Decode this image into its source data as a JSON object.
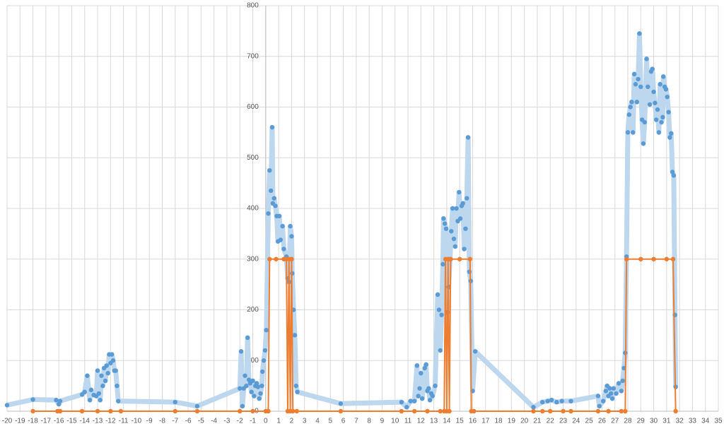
{
  "chart_data": {
    "type": "scatter",
    "xlim": [
      -20,
      35
    ],
    "ylim": [
      0,
      800
    ],
    "xticks": [
      -20,
      -19,
      -18,
      -17,
      -16,
      -15,
      -14,
      -13,
      -12,
      -11,
      -10,
      -9,
      -8,
      -7,
      -6,
      -5,
      -4,
      -3,
      -2,
      -1,
      0,
      1,
      2,
      3,
      4,
      5,
      6,
      7,
      8,
      9,
      10,
      11,
      12,
      13,
      14,
      15,
      16,
      17,
      18,
      19,
      20,
      21,
      22,
      23,
      24,
      25,
      26,
      27,
      28,
      29,
      30,
      31,
      32,
      33,
      34,
      35
    ],
    "yticks": [
      0,
      100,
      200,
      300,
      400,
      500,
      600,
      700,
      800
    ],
    "grid": true,
    "series": [
      {
        "color": "#5b9bd5",
        "line_color": "#bdd7ee",
        "x": [
          -20,
          -18,
          -16.2,
          -16,
          -15.9,
          -14.2,
          -14,
          -13.8,
          -13.6,
          -13.5,
          -13.3,
          -13.1,
          -13,
          -12.9,
          -12.8,
          -12.7,
          -12.6,
          -12.5,
          -12.4,
          -12.3,
          -12.2,
          -12.1,
          -12,
          -11.9,
          -11.8,
          -11.7,
          -11.6,
          -11.5,
          -11.4,
          -7,
          -5.3,
          -2,
          -1.9,
          -1.8,
          -1.7,
          -1.6,
          -1.5,
          -1.4,
          -1.3,
          -1.2,
          -1.1,
          -1,
          -0.9,
          -0.8,
          -0.7,
          -0.6,
          -0.5,
          -0.4,
          -0.3,
          -0.25,
          -0.15,
          -0.05,
          0.05,
          0.2,
          0.3,
          0.4,
          0.5,
          0.55,
          0.65,
          0.75,
          0.85,
          0.95,
          1.05,
          1.15,
          1.3,
          1.4,
          1.6,
          1.7,
          1.8,
          1.9,
          2,
          2.05,
          2.15,
          2.25,
          2.35,
          2.45,
          5.8,
          10.5,
          10.9,
          11.2,
          11.5,
          11.7,
          11.8,
          11.9,
          12,
          12.1,
          12.3,
          12.4,
          12.5,
          12.6,
          12.7,
          12.8,
          12.9,
          13.1,
          13.3,
          13.4,
          13.5,
          13.6,
          13.7,
          13.75,
          13.85,
          13.95,
          14.05,
          14.15,
          14.25,
          14.35,
          14.45,
          14.55,
          14.65,
          14.75,
          14.85,
          14.95,
          15.05,
          15.15,
          15.25,
          15.35,
          15.45,
          15.55,
          15.65,
          15.75,
          15.85,
          16,
          16.2,
          20.7,
          21.4,
          21.8,
          22.1,
          22.5,
          22.9,
          23.6,
          25.7,
          25.8,
          26.1,
          26.3,
          26.4,
          26.5,
          26.6,
          26.7,
          26.8,
          26.9,
          27.1,
          27.3,
          27.5,
          27.6,
          27.7,
          27.8,
          27.9,
          28,
          28.1,
          28.2,
          28.3,
          28.4,
          28.5,
          28.6,
          28.7,
          28.8,
          28.9,
          29,
          29.1,
          29.2,
          29.3,
          29.45,
          29.55,
          29.7,
          29.8,
          29.9,
          30,
          30.1,
          30.2,
          30.3,
          30.4,
          30.5,
          30.6,
          30.7,
          30.75,
          30.85,
          30.95,
          31.05,
          31.15,
          31.25,
          31.35,
          31.45,
          31.55,
          31.65,
          31.7
        ],
        "values": [
          12,
          23,
          22,
          14,
          20,
          33,
          38,
          70,
          22,
          42,
          32,
          30,
          80,
          35,
          22,
          70,
          50,
          85,
          60,
          90,
          75,
          112,
          95,
          112,
          100,
          80,
          80,
          50,
          20,
          18,
          10,
          45,
          118,
          10,
          45,
          70,
          50,
          145,
          62,
          55,
          38,
          60,
          30,
          50,
          55,
          48,
          25,
          35,
          50,
          78,
          100,
          120,
          160,
          390,
          475,
          435,
          560,
          410,
          420,
          405,
          385,
          335,
          385,
          338,
          365,
          320,
          305,
          262,
          255,
          365,
          345,
          272,
          200,
          150,
          50,
          38,
          15,
          18,
          8,
          20,
          20,
          90,
          30,
          45,
          75,
          25,
          85,
          92,
          40,
          45,
          22,
          35,
          30,
          50,
          230,
          200,
          120,
          190,
          290,
          380,
          370,
          360,
          195,
          245,
          300,
          355,
          400,
          340,
          325,
          400,
          375,
          432,
          380,
          405,
          410,
          320,
          360,
          420,
          540,
          275,
          257,
          40,
          118,
          8,
          18,
          20,
          22,
          18,
          20,
          20,
          30,
          10,
          20,
          40,
          50,
          30,
          45,
          35,
          25,
          45,
          35,
          55,
          40,
          60,
          85,
          115,
          305,
          550,
          585,
          600,
          610,
          550,
          665,
          645,
          610,
          655,
          745,
          640,
          575,
          528,
          570,
          695,
          640,
          605,
          670,
          675,
          630,
          608,
          575,
          595,
          550,
          645,
          570,
          580,
          660,
          640,
          635,
          620,
          590,
          540,
          548,
          472,
          465,
          190,
          48
        ]
      },
      {
        "color": "#ed7d31",
        "line_color": "#ed7d31",
        "x": [
          -18,
          -16.1,
          -15.9,
          -14.2,
          -13,
          -12,
          -11.2,
          -7,
          -5.3,
          -2,
          -1,
          0,
          0.2,
          0.3,
          0.8,
          1.4,
          1.6,
          1.7,
          1.8,
          1.9,
          2.0,
          2.1,
          2.4,
          5.8,
          10.5,
          11.5,
          12.5,
          13.5,
          13.8,
          13.9,
          14.0,
          14.1,
          14.2,
          14.3,
          15,
          15.8,
          15.9,
          16.1,
          20.7,
          21.4,
          22,
          23,
          23.6,
          25.7,
          26.5,
          27.5,
          27.8,
          27.9,
          29,
          30,
          31,
          31.5,
          31.7
        ],
        "values": [
          0,
          0,
          0,
          0,
          0,
          0,
          0,
          0,
          0,
          0,
          0,
          0,
          0,
          300,
          300,
          300,
          300,
          0,
          300,
          0,
          300,
          0,
          0,
          0,
          0,
          0,
          0,
          0,
          0,
          300,
          0,
          300,
          0,
          300,
          300,
          300,
          0,
          0,
          0,
          0,
          0,
          0,
          0,
          0,
          0,
          0,
          0,
          300,
          300,
          300,
          300,
          300,
          0
        ]
      }
    ]
  }
}
